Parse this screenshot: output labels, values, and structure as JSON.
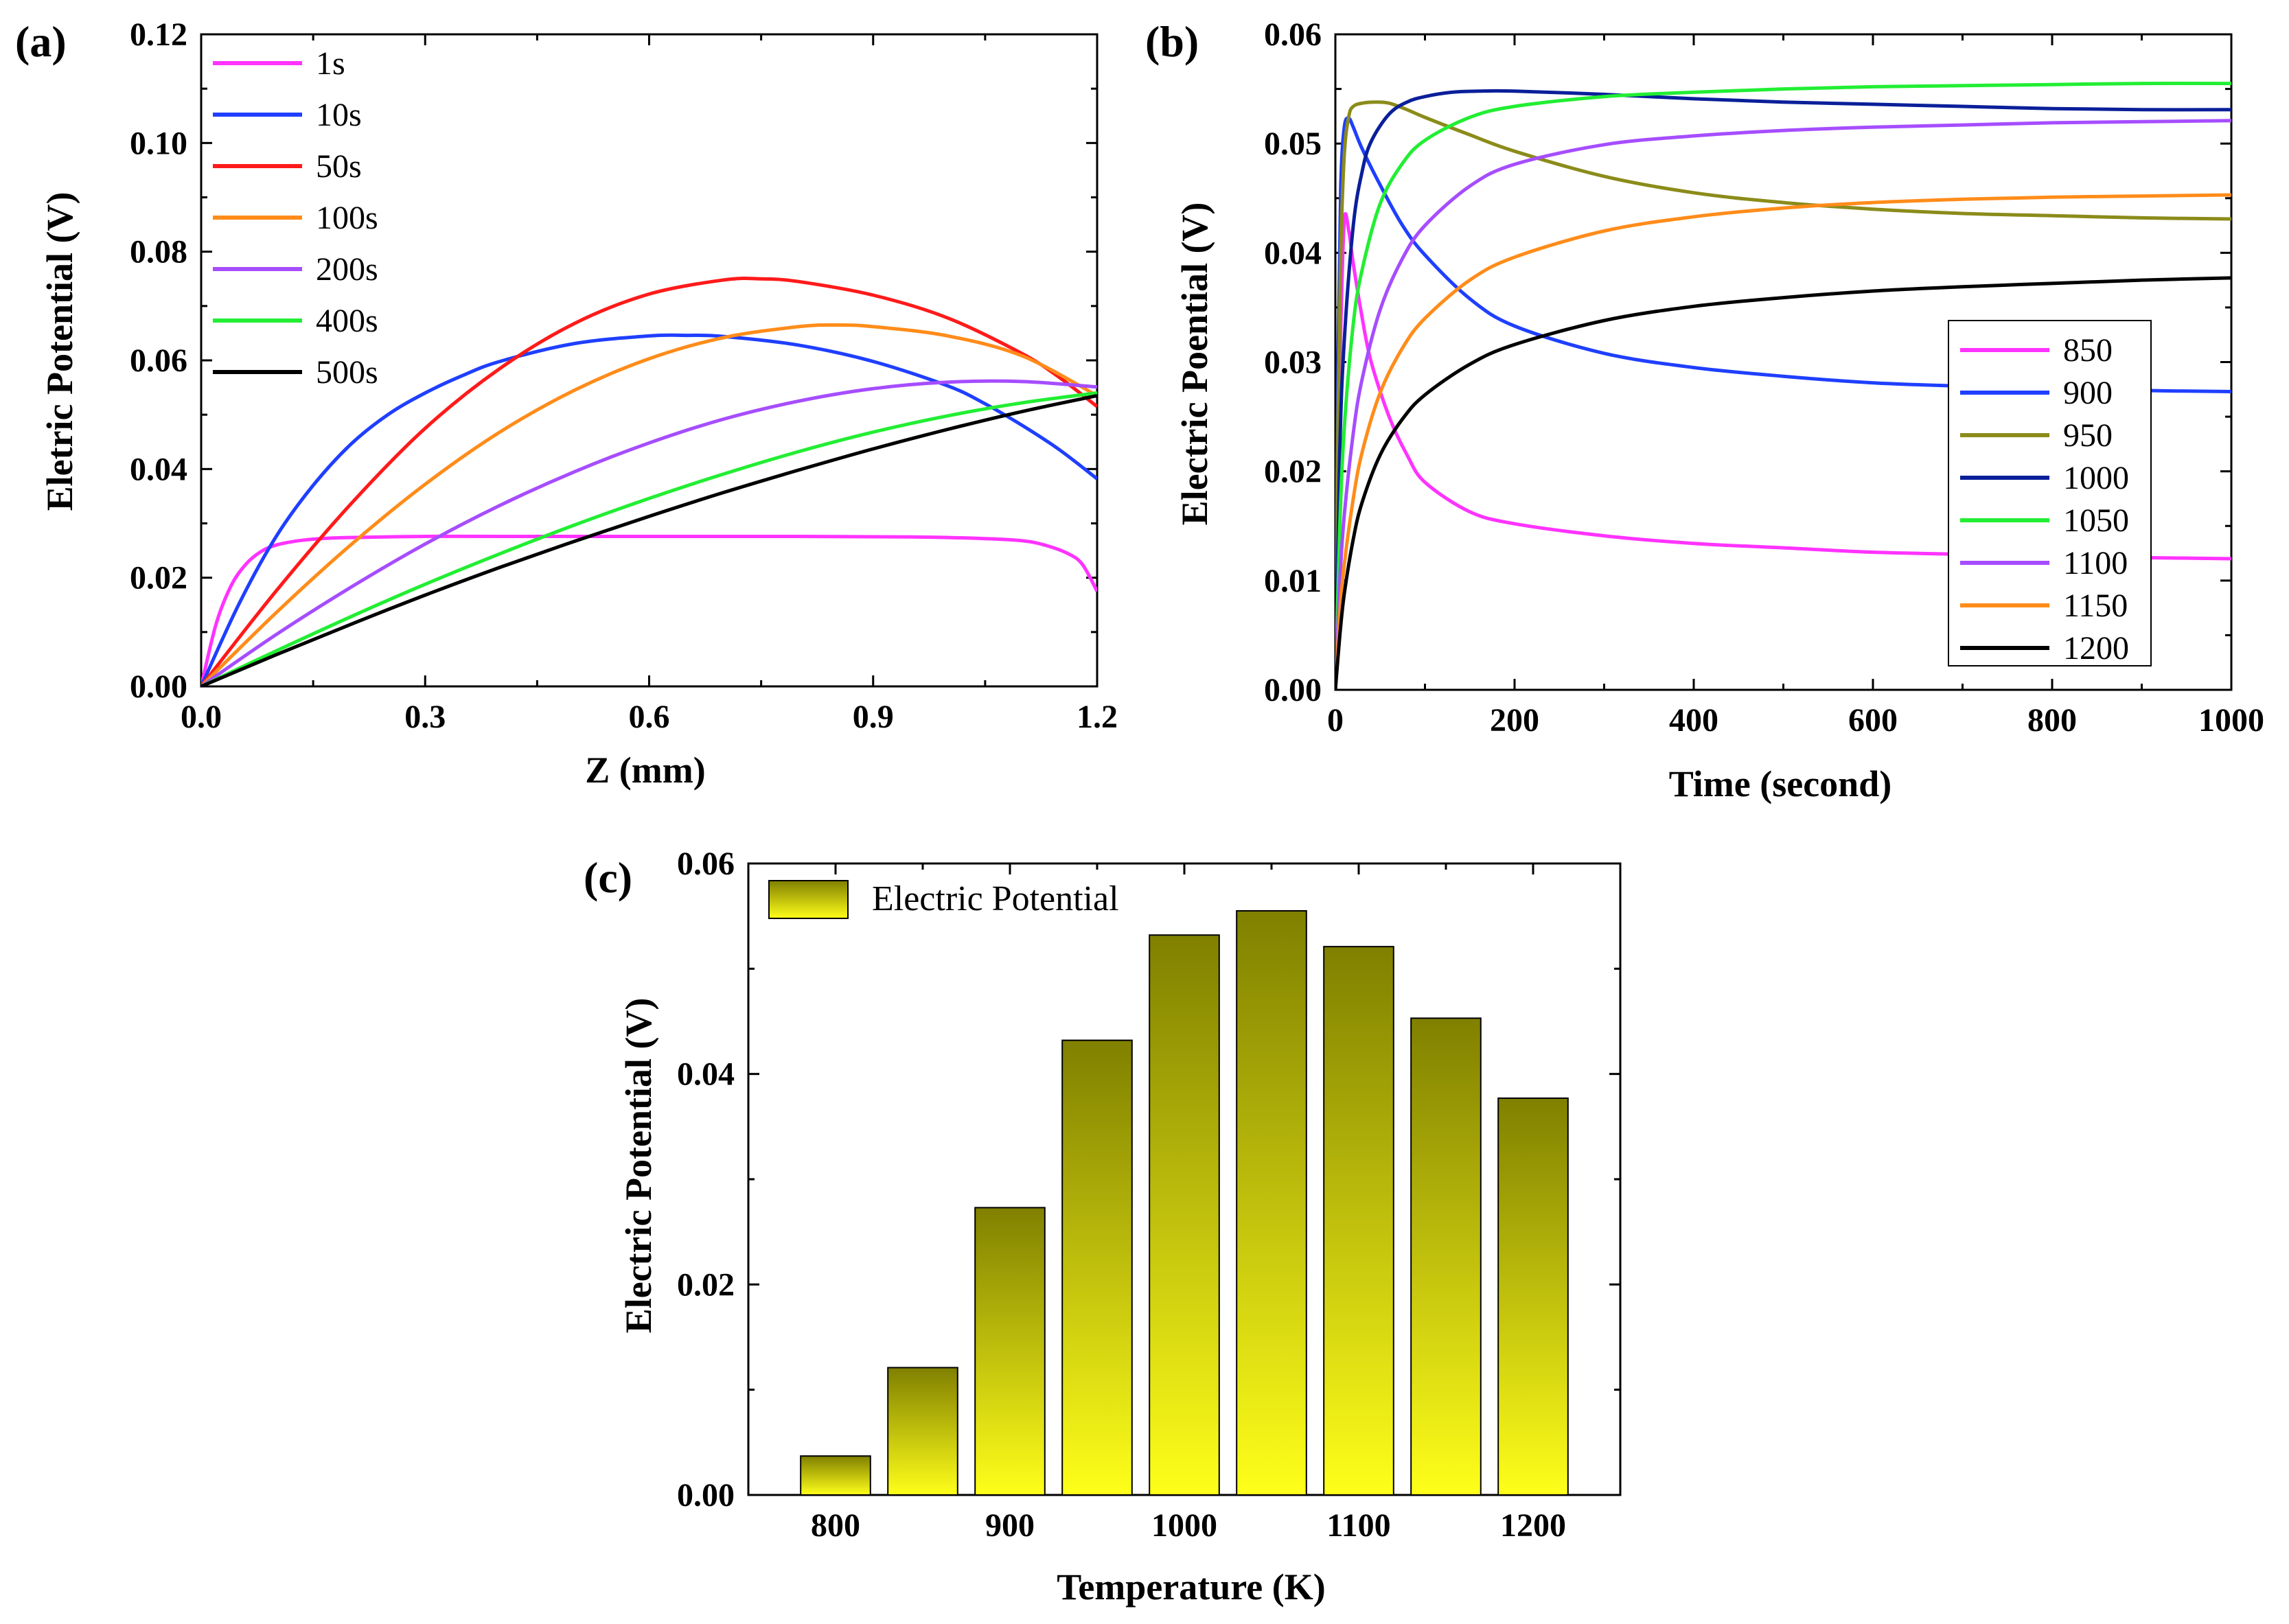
{
  "chart_data": [
    {
      "id": "a",
      "panel_label": "(a)",
      "type": "line",
      "xlabel": "Z (mm)",
      "ylabel": "Eletric Potential (V)",
      "xlim": [
        0.0,
        1.2
      ],
      "ylim": [
        0.0,
        0.12
      ],
      "xticks": [
        "0.0",
        "0.3",
        "0.6",
        "0.9",
        "1.2"
      ],
      "yticks": [
        "0.00",
        "0.02",
        "0.04",
        "0.06",
        "0.08",
        "0.10",
        "0.12"
      ],
      "legend_position": "top-left",
      "series": [
        {
          "name": "1s",
          "color": "#ff33ff",
          "x": [
            0,
            0.02,
            0.04,
            0.06,
            0.08,
            0.1,
            0.13,
            0.16,
            0.2,
            0.3,
            0.4,
            0.6,
            0.8,
            0.95,
            1.05,
            1.1,
            1.13,
            1.16,
            1.18,
            1.2
          ],
          "y": [
            0,
            0.0115,
            0.0185,
            0.0225,
            0.0248,
            0.026,
            0.0268,
            0.0272,
            0.0274,
            0.0276,
            0.0276,
            0.0276,
            0.0276,
            0.0275,
            0.0272,
            0.0268,
            0.026,
            0.0245,
            0.0225,
            0.0175
          ]
        },
        {
          "name": "10s",
          "color": "#1f3fff",
          "x": [
            0,
            0.05,
            0.1,
            0.15,
            0.2,
            0.25,
            0.3,
            0.35,
            0.4,
            0.5,
            0.6,
            0.65,
            0.7,
            0.8,
            0.9,
            1.0,
            1.05,
            1.1,
            1.15,
            1.2
          ],
          "y": [
            0,
            0.015,
            0.0275,
            0.037,
            0.0445,
            0.05,
            0.054,
            0.0572,
            0.0598,
            0.0631,
            0.0645,
            0.0646,
            0.0644,
            0.0628,
            0.0598,
            0.0553,
            0.052,
            0.048,
            0.0435,
            0.0382
          ]
        },
        {
          "name": "50s",
          "color": "#ff1a1a",
          "x": [
            0,
            0.1,
            0.2,
            0.3,
            0.4,
            0.5,
            0.6,
            0.7,
            0.75,
            0.8,
            0.9,
            1.0,
            1.1,
            1.15,
            1.2
          ],
          "y": [
            0,
            0.0175,
            0.0335,
            0.0475,
            0.0585,
            0.0668,
            0.0722,
            0.0748,
            0.075,
            0.0745,
            0.072,
            0.0678,
            0.0612,
            0.0568,
            0.0515
          ]
        },
        {
          "name": "100s",
          "color": "#ff8c1a",
          "x": [
            0,
            0.1,
            0.2,
            0.3,
            0.4,
            0.5,
            0.6,
            0.7,
            0.8,
            0.85,
            0.9,
            1.0,
            1.1,
            1.2
          ],
          "y": [
            0,
            0.0135,
            0.026,
            0.0372,
            0.0468,
            0.0545,
            0.0603,
            0.0642,
            0.0662,
            0.0665,
            0.0662,
            0.0645,
            0.0608,
            0.0535
          ]
        },
        {
          "name": "200s",
          "color": "#a64dff",
          "x": [
            0,
            0.1,
            0.2,
            0.3,
            0.4,
            0.5,
            0.6,
            0.7,
            0.8,
            0.9,
            1.0,
            1.1,
            1.2
          ],
          "y": [
            0,
            0.0095,
            0.0182,
            0.0262,
            0.0333,
            0.0395,
            0.0448,
            0.0492,
            0.0525,
            0.0548,
            0.056,
            0.0561,
            0.0551
          ]
        },
        {
          "name": "400s",
          "color": "#22ee33",
          "x": [
            0,
            0.1,
            0.2,
            0.3,
            0.4,
            0.5,
            0.6,
            0.7,
            0.8,
            0.9,
            1.0,
            1.1,
            1.2
          ],
          "y": [
            0,
            0.0065,
            0.0128,
            0.0188,
            0.0244,
            0.0297,
            0.0346,
            0.0391,
            0.0432,
            0.0468,
            0.0498,
            0.0522,
            0.054
          ]
        },
        {
          "name": "500s",
          "color": "#000000",
          "x": [
            0,
            0.1,
            0.2,
            0.3,
            0.4,
            0.5,
            0.6,
            0.7,
            0.8,
            0.9,
            1.0,
            1.1,
            1.2
          ],
          "y": [
            0,
            0.0058,
            0.0114,
            0.0168,
            0.0219,
            0.0267,
            0.0313,
            0.0357,
            0.0398,
            0.0437,
            0.0473,
            0.0506,
            0.0535
          ]
        }
      ]
    },
    {
      "id": "b",
      "panel_label": "(b)",
      "type": "line",
      "xlabel": "Time (second)",
      "ylabel": "Electric Poential (V)",
      "xlim": [
        0,
        1000
      ],
      "ylim": [
        0.0,
        0.06
      ],
      "xticks": [
        "0",
        "200",
        "400",
        "600",
        "800",
        "1000"
      ],
      "yticks": [
        "0.00",
        "0.01",
        "0.02",
        "0.03",
        "0.04",
        "0.05",
        "0.06"
      ],
      "legend_position": "bottom-right",
      "series": [
        {
          "name": "850",
          "color": "#ff33ff",
          "x": [
            0,
            3,
            6,
            10,
            15,
            20,
            30,
            40,
            60,
            80,
            100,
            150,
            200,
            300,
            400,
            500,
            600,
            700,
            800,
            900,
            1000
          ],
          "y": [
            0.0,
            0.02,
            0.033,
            0.043,
            0.042,
            0.039,
            0.034,
            0.03,
            0.025,
            0.0215,
            0.019,
            0.0163,
            0.0152,
            0.0141,
            0.0134,
            0.013,
            0.0126,
            0.0124,
            0.0122,
            0.0121,
            0.012
          ]
        },
        {
          "name": "900",
          "color": "#1f3fff",
          "x": [
            0,
            3,
            6,
            10,
            15,
            20,
            30,
            50,
            75,
            100,
            150,
            200,
            300,
            400,
            500,
            600,
            700,
            800,
            900,
            1000
          ],
          "y": [
            0.0,
            0.03,
            0.046,
            0.0515,
            0.0523,
            0.0515,
            0.0495,
            0.0462,
            0.0425,
            0.0398,
            0.0358,
            0.0333,
            0.0308,
            0.0295,
            0.0287,
            0.0281,
            0.0278,
            0.0276,
            0.0274,
            0.0273
          ]
        },
        {
          "name": "950",
          "color": "#8b8b1a",
          "x": [
            0,
            3,
            6,
            10,
            15,
            20,
            30,
            45,
            60,
            80,
            100,
            150,
            200,
            300,
            400,
            500,
            600,
            700,
            800,
            900,
            1000
          ],
          "y": [
            0.0,
            0.025,
            0.04,
            0.049,
            0.0525,
            0.0534,
            0.0537,
            0.0538,
            0.0537,
            0.0531,
            0.0524,
            0.0508,
            0.0493,
            0.047,
            0.0455,
            0.0446,
            0.044,
            0.0436,
            0.0434,
            0.0432,
            0.0431
          ]
        },
        {
          "name": "1000",
          "color": "#0a1f99",
          "x": [
            0,
            5,
            10,
            20,
            30,
            40,
            60,
            80,
            100,
            130,
            160,
            200,
            300,
            400,
            500,
            600,
            700,
            800,
            900,
            1000
          ],
          "y": [
            0.0,
            0.022,
            0.032,
            0.0425,
            0.0475,
            0.0502,
            0.0527,
            0.0538,
            0.0543,
            0.0547,
            0.0548,
            0.0548,
            0.0545,
            0.0541,
            0.0538,
            0.0536,
            0.0534,
            0.0532,
            0.0531,
            0.0531
          ]
        },
        {
          "name": "1050",
          "color": "#22ee33",
          "x": [
            0,
            5,
            10,
            20,
            30,
            50,
            75,
            100,
            150,
            200,
            300,
            400,
            500,
            600,
            700,
            800,
            900,
            1000
          ],
          "y": [
            0.0,
            0.015,
            0.024,
            0.0335,
            0.0385,
            0.0445,
            0.0482,
            0.0503,
            0.0524,
            0.0534,
            0.0543,
            0.0547,
            0.055,
            0.0552,
            0.0553,
            0.0554,
            0.0555,
            0.0555
          ]
        },
        {
          "name": "1100",
          "color": "#a64dff",
          "x": [
            0,
            5,
            10,
            20,
            30,
            50,
            75,
            100,
            150,
            200,
            300,
            400,
            500,
            600,
            700,
            800,
            900,
            1000
          ],
          "y": [
            0.0,
            0.01,
            0.016,
            0.0235,
            0.0285,
            0.0348,
            0.0395,
            0.0425,
            0.0461,
            0.0481,
            0.0499,
            0.0507,
            0.0512,
            0.0515,
            0.0517,
            0.0519,
            0.052,
            0.0521
          ]
        },
        {
          "name": "1150",
          "color": "#ff8c1a",
          "x": [
            0,
            5,
            10,
            20,
            30,
            50,
            75,
            100,
            150,
            200,
            300,
            400,
            500,
            600,
            700,
            800,
            900,
            1000
          ],
          "y": [
            0.0,
            0.007,
            0.0115,
            0.0175,
            0.0218,
            0.0272,
            0.0313,
            0.034,
            0.0375,
            0.0396,
            0.042,
            0.0433,
            0.0441,
            0.0446,
            0.0449,
            0.0451,
            0.0452,
            0.0453
          ]
        },
        {
          "name": "1200",
          "color": "#000000",
          "x": [
            0,
            5,
            10,
            20,
            30,
            50,
            75,
            100,
            150,
            200,
            300,
            400,
            500,
            600,
            700,
            800,
            900,
            1000
          ],
          "y": [
            0.0,
            0.005,
            0.0088,
            0.0138,
            0.0172,
            0.0215,
            0.0248,
            0.027,
            0.0298,
            0.0316,
            0.0338,
            0.0351,
            0.0359,
            0.0365,
            0.0369,
            0.0372,
            0.0375,
            0.0377
          ]
        }
      ]
    },
    {
      "id": "c",
      "panel_label": "(c)",
      "type": "bar",
      "xlabel": "Temperature (K)",
      "ylabel": "Electric Potential (V)",
      "xlim": [
        750,
        1250
      ],
      "ylim": [
        0.0,
        0.06
      ],
      "xticks": [
        "800",
        "900",
        "1000",
        "1100",
        "1200"
      ],
      "yticks": [
        "0.00",
        "0.02",
        "0.04",
        "0.06"
      ],
      "legend_position": "top-left",
      "legend_label": "Electric Potential",
      "bar_color_top": "#808000",
      "bar_color_bottom": "#ffff1a",
      "categories": [
        800,
        850,
        900,
        950,
        1000,
        1050,
        1100,
        1150,
        1200
      ],
      "values": [
        0.0037,
        0.0121,
        0.0273,
        0.0432,
        0.0532,
        0.0555,
        0.0521,
        0.0453,
        0.0377
      ]
    }
  ]
}
